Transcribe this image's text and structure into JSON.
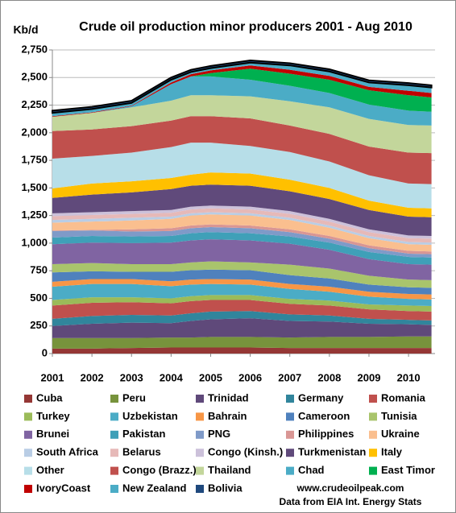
{
  "chart_data": {
    "type": "stacked_area",
    "title": "Crude oil production minor producers 2001 - Aug 2010",
    "ylabel": "Kb/d",
    "source_lines": [
      "www.crudeoilpeak.com",
      "Data from EIA Int. Energy Stats"
    ],
    "x": [
      2001,
      2002,
      2003,
      2004,
      2004.5,
      2005,
      2006,
      2007,
      2008,
      2009,
      2010,
      2010.58
    ],
    "xlim": [
      2001,
      2010.67
    ],
    "xticks": [
      2001,
      2002,
      2003,
      2004,
      2005,
      2006,
      2007,
      2008,
      2009,
      2010
    ],
    "ylim": [
      0,
      2750
    ],
    "yticks": [
      0,
      250,
      500,
      750,
      {
        "value": 1000,
        "label": "1,000"
      },
      {
        "value": 1250,
        "label": "1,250"
      },
      {
        "value": 1500,
        "label": "1,500"
      },
      {
        "value": 1750,
        "label": "1,750"
      },
      {
        "value": 2000,
        "label": "2,000"
      },
      {
        "value": 2250,
        "label": "2,250"
      },
      {
        "value": 2500,
        "label": "2,500"
      },
      {
        "value": 2750,
        "label": "2,750"
      }
    ],
    "grid": true,
    "series": [
      {
        "name": "Cuba",
        "color": "#953735",
        "values": [
          45,
          45,
          50,
          55,
          55,
          55,
          55,
          50,
          50,
          50,
          50,
          50
        ]
      },
      {
        "name": "Peru",
        "color": "#77933c",
        "values": [
          95,
          95,
          90,
          90,
          90,
          95,
          95,
          95,
          100,
          100,
          105,
          105
        ]
      },
      {
        "name": "Trinidad",
        "color": "#5f497a",
        "values": [
          110,
          130,
          140,
          130,
          150,
          160,
          170,
          150,
          140,
          120,
          110,
          105
        ]
      },
      {
        "name": "Germany",
        "color": "#31859c",
        "values": [
          65,
          70,
          70,
          70,
          70,
          70,
          65,
          60,
          55,
          45,
          40,
          40
        ]
      },
      {
        "name": "Romania",
        "color": "#c0504d",
        "values": [
          120,
          120,
          115,
          110,
          110,
          105,
          100,
          95,
          90,
          85,
          80,
          80
        ]
      },
      {
        "name": "Turkey",
        "color": "#9bbb59",
        "values": [
          50,
          50,
          45,
          45,
          45,
          45,
          45,
          45,
          45,
          45,
          50,
          50
        ]
      },
      {
        "name": "Uzbekistan",
        "color": "#4bacc6",
        "values": [
          120,
          120,
          120,
          110,
          105,
          100,
          95,
          90,
          80,
          70,
          60,
          60
        ]
      },
      {
        "name": "Bahrain",
        "color": "#f79646",
        "values": [
          45,
          45,
          45,
          45,
          45,
          45,
          45,
          45,
          45,
          45,
          45,
          45
        ]
      },
      {
        "name": "Cameroon",
        "color": "#4f81bd",
        "values": [
          85,
          70,
          65,
          85,
          85,
          85,
          85,
          80,
          75,
          65,
          60,
          60
        ]
      },
      {
        "name": "Tunisia",
        "color": "#a9c46c",
        "values": [
          75,
          75,
          70,
          70,
          70,
          75,
          70,
          95,
          90,
          80,
          70,
          70
        ]
      },
      {
        "name": "Brunei",
        "color": "#8064a2",
        "values": [
          180,
          185,
          190,
          195,
          200,
          200,
          200,
          190,
          170,
          150,
          140,
          140
        ]
      },
      {
        "name": "Pakistan",
        "color": "#3fa0b8",
        "values": [
          60,
          60,
          60,
          60,
          65,
          65,
          65,
          65,
          65,
          65,
          65,
          65
        ]
      },
      {
        "name": "PNG",
        "color": "#7f9ac8",
        "values": [
          60,
          50,
          45,
          45,
          45,
          45,
          45,
          40,
          35,
          35,
          30,
          30
        ]
      },
      {
        "name": "Philippines",
        "color": "#d99694",
        "values": [
          5,
          5,
          20,
          25,
          25,
          25,
          25,
          25,
          25,
          25,
          25,
          25
        ]
      },
      {
        "name": "Ukraine",
        "color": "#fabf8f",
        "values": [
          70,
          75,
          80,
          85,
          90,
          90,
          90,
          85,
          75,
          65,
          60,
          60
        ]
      },
      {
        "name": "South Africa",
        "color": "#b9cde5",
        "values": [
          25,
          25,
          25,
          20,
          20,
          20,
          20,
          20,
          20,
          20,
          20,
          20
        ]
      },
      {
        "name": "Belarus",
        "color": "#e6b9b8",
        "values": [
          35,
          35,
          35,
          35,
          35,
          35,
          35,
          35,
          35,
          35,
          35,
          35
        ]
      },
      {
        "name": "Congo (Kinsh.)",
        "color": "#ccc1da",
        "values": [
          25,
          25,
          25,
          25,
          25,
          25,
          25,
          25,
          25,
          25,
          25,
          25
        ]
      },
      {
        "name": "Turkmenistan",
        "color": "#604a7b",
        "values": [
          140,
          160,
          170,
          190,
          190,
          190,
          190,
          180,
          180,
          175,
          170,
          170
        ]
      },
      {
        "name": "Italy",
        "color": "#ffc000",
        "values": [
          85,
          100,
          100,
          100,
          100,
          110,
          110,
          105,
          100,
          85,
          80,
          80
        ]
      },
      {
        "name": "Other",
        "color": "#b7dee8",
        "values": [
          270,
          250,
          260,
          280,
          290,
          270,
          250,
          250,
          240,
          230,
          220,
          220
        ]
      },
      {
        "name": "Congo (Brazz.)",
        "color": "#c0504d",
        "values": [
          250,
          240,
          240,
          240,
          240,
          240,
          250,
          240,
          250,
          260,
          280,
          280
        ]
      },
      {
        "name": "Thailand",
        "color": "#c3d69b",
        "values": [
          130,
          150,
          170,
          180,
          190,
          190,
          200,
          220,
          240,
          250,
          250,
          250
        ]
      },
      {
        "name": "Chad",
        "color": "#4bacc6",
        "values": [
          0,
          0,
          10,
          150,
          170,
          170,
          150,
          140,
          130,
          130,
          130,
          125
        ]
      },
      {
        "name": "East Timor",
        "color": "#00b050",
        "values": [
          0,
          0,
          0,
          0,
          0,
          30,
          100,
          110,
          120,
          130,
          140,
          130
        ]
      },
      {
        "name": "IvoryCoast",
        "color": "#c00000",
        "values": [
          5,
          5,
          5,
          15,
          20,
          25,
          30,
          35,
          35,
          30,
          40,
          40
        ]
      },
      {
        "name": "New Zealand",
        "color": "#4bacc6",
        "values": [
          30,
          30,
          25,
          25,
          20,
          20,
          25,
          40,
          40,
          40,
          50,
          50
        ]
      },
      {
        "name": "Bolivia",
        "color": "#1f497d",
        "values": [
          20,
          20,
          20,
          20,
          20,
          20,
          20,
          20,
          20,
          20,
          20,
          20
        ]
      }
    ]
  }
}
